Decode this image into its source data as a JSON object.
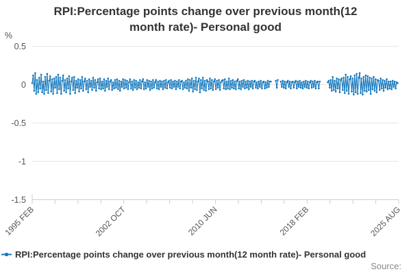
{
  "title": "RPI:Percentage points change over previous month(12 month rate)- Personal good",
  "legend": {
    "label": "RPI:Percentage points change over previous month(12 month rate)- Personal good"
  },
  "source": {
    "label": "Source:"
  },
  "colors": {
    "accent_blue": "#1076bc",
    "gridline": "#e6e6e6",
    "axis": "#c5d0de",
    "title_text": "#333333",
    "tick_text": "#555555",
    "source_text": "#888888"
  },
  "chart_data": {
    "type": "line",
    "title": "RPI:Percentage points change over previous month(12 month rate)- Personal good",
    "unit_label": "%",
    "xlabel": "",
    "ylabel": "%",
    "ylim": [
      -1.5,
      0.5
    ],
    "y_ticks": [
      0.5,
      0,
      -0.5,
      -1,
      -1.5
    ],
    "x_minor_tick_count": 17,
    "label_every_n_ticks": 4,
    "x_tick_labels": [
      "1995 FEB",
      "2002 OCT",
      "2010 JUN",
      "2018 FEB",
      "2025 AUG"
    ],
    "x_range": [
      "1995 FEB",
      "2025 AUG"
    ],
    "grid": "horizontal",
    "legend_position": "bottom-left",
    "series": [
      {
        "name": "RPI:Percentage points change over previous month(12 month rate)- Personal good",
        "color": "#1076bc",
        "start": "1995 FEB",
        "frequency": "monthly",
        "values": [
          0.02,
          0.12,
          -0.08,
          0.15,
          -0.12,
          0.06,
          -0.1,
          0.09,
          -0.05,
          0.13,
          -0.1,
          0.04,
          -0.12,
          0.1,
          -0.07,
          0.14,
          -0.11,
          0.05,
          0.11,
          -0.09,
          0.07,
          -0.12,
          0.08,
          -0.04,
          0.1,
          -0.11,
          0.13,
          -0.06,
          0.09,
          -0.12,
          0.05,
          0.12,
          -0.08,
          0.06,
          -0.1,
          0.08,
          -0.05,
          0.11,
          -0.12,
          0.04,
          0.09,
          -0.07,
          0.1,
          -0.11,
          0.05,
          -0.04,
          0.07,
          -0.09,
          0.06,
          -0.05,
          0.1,
          -0.08,
          0.04,
          0.08,
          -0.06,
          0.05,
          -0.1,
          0.07,
          -0.03,
          0.05,
          -0.07,
          0.09,
          -0.04,
          0.06,
          -0.08,
          0.03,
          0.07,
          -0.05,
          0.08,
          -0.06,
          0.04,
          -0.05,
          0.07,
          -0.08,
          0.05,
          -0.03,
          0.08,
          -0.06,
          0.04,
          0.06,
          -0.07,
          0.03,
          -0.05,
          0.06,
          -0.04,
          0.07,
          -0.06,
          0.05,
          -0.08,
          0.04,
          -0.03,
          0.07,
          -0.05,
          0.06,
          -0.04,
          0.05,
          -0.06,
          0.03,
          0.07,
          -0.05,
          0.04,
          -0.07,
          0.06,
          -0.04,
          0.05,
          -0.06,
          0.03,
          -0.04,
          0.06,
          -0.05,
          0.04,
          0.07,
          -0.06,
          0.03,
          -0.05,
          0.06,
          -0.03,
          0.05,
          -0.07,
          0.04,
          -0.05,
          0.06,
          -0.04,
          0.03,
          0.06,
          -0.05,
          0.04,
          -0.06,
          0.05,
          -0.03,
          0.04,
          -0.06,
          0.05,
          -0.04,
          0.06,
          -0.05,
          0.03,
          0.05,
          -0.04,
          0.06,
          -0.05,
          0.04,
          -0.03,
          0.05,
          -0.06,
          0.04,
          -0.03,
          0.06,
          -0.05,
          0.04,
          0.05,
          -0.06,
          0.03,
          -0.04,
          0.05,
          -0.05,
          0.07,
          -0.08,
          0.06,
          -0.04,
          0.08,
          -0.09,
          0.05,
          -0.06,
          0.09,
          -0.07,
          0.04,
          0.08,
          -0.1,
          0.06,
          -0.05,
          0.09,
          -0.07,
          0.05,
          -0.08,
          0.06,
          0.04,
          -0.06,
          0.08,
          -0.05,
          0.06,
          -0.07,
          0.04,
          0.07,
          -0.06,
          0.05,
          -0.04,
          0.06,
          -0.07,
          0.03,
          0.05,
          0.06,
          -0.05,
          0.07,
          -0.06,
          0.04,
          -0.05,
          0.08,
          -0.06,
          0.05,
          -0.04,
          0.06,
          -0.05,
          0.04,
          -0.06,
          0.05,
          0.07,
          -0.05,
          0.04,
          -0.06,
          0.05,
          -0.03,
          0.06,
          -0.05,
          0.04,
          -0.04,
          0.05,
          -0.06,
          0.04,
          -0.03,
          0.05,
          -0.05,
          0.04,
          0.05,
          -0.04,
          0.03,
          -0.05,
          0.04,
          -0.03,
          0.05,
          -0.05,
          0.03,
          0.04,
          -0.05,
          0.03,
          -0.04,
          0.05,
          -0.03,
          0.04,
          0.04,
          null,
          null,
          null,
          null,
          0.05,
          -0.04,
          0.06,
          null,
          null,
          0.04,
          -0.03,
          0.05,
          -0.04,
          0.04,
          -0.05,
          0.03,
          0.05,
          -0.03,
          0.04,
          -0.05,
          0.03,
          0.04,
          -0.04,
          0.03,
          0.05,
          -0.05,
          0.04,
          -0.03,
          0.05,
          -0.04,
          0.03,
          -0.05,
          0.04,
          -0.03,
          0.05,
          -0.04,
          0.04,
          -0.05,
          0.03,
          0.05,
          -0.04,
          0.04,
          -0.03,
          0.05,
          -0.05,
          0.03,
          0.04,
          -0.05,
          0.04,
          null,
          null,
          null,
          null,
          null,
          null,
          null,
          0.03,
          0.05,
          -0.04,
          0.06,
          -0.08,
          0.1,
          -0.07,
          0.05,
          -0.09,
          0.08,
          -0.05,
          0.07,
          -0.1,
          0.06,
          0.08,
          -0.07,
          0.09,
          -0.11,
          0.13,
          -0.08,
          0.1,
          -0.12,
          0.07,
          0.11,
          -0.09,
          0.08,
          -0.13,
          0.12,
          -0.1,
          0.14,
          -0.12,
          0.09,
          0.15,
          -0.11,
          0.08,
          -0.13,
          0.1,
          -0.08,
          0.12,
          -0.09,
          0.11,
          -0.07,
          0.09,
          -0.12,
          0.08,
          -0.06,
          0.1,
          -0.08,
          0.07,
          -0.1,
          0.06,
          0.05,
          -0.07,
          0.08,
          -0.05,
          0.06,
          -0.08,
          0.05,
          -0.04,
          0.07,
          -0.06,
          0.04,
          -0.05,
          0.04,
          -0.06,
          0.05,
          -0.03,
          0.04,
          -0.05,
          0.03,
          0.02
        ]
      }
    ]
  }
}
